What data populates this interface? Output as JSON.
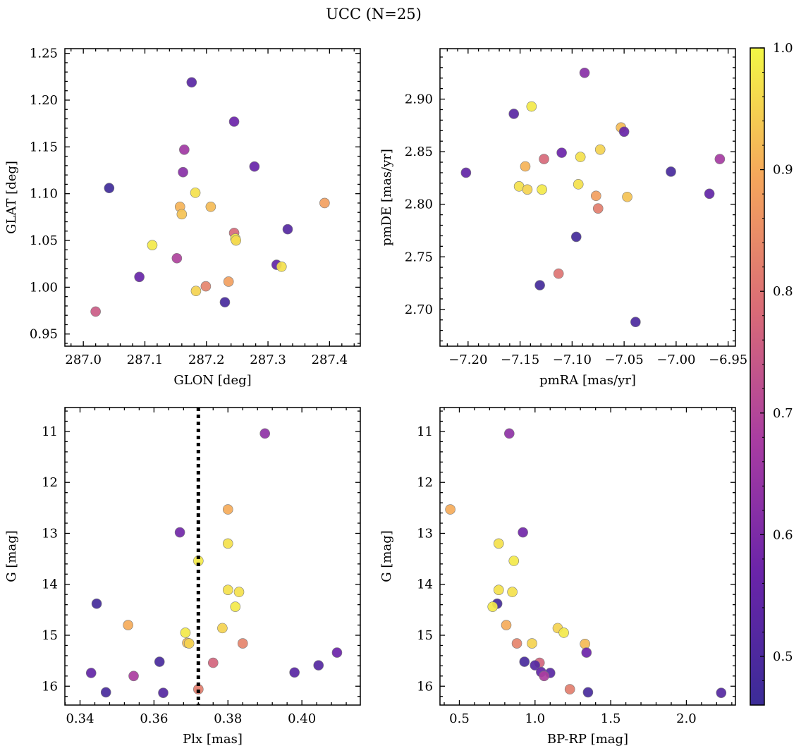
{
  "figure": {
    "title": "UCC (N=25)"
  },
  "colorbar": {
    "colormap": "plasma",
    "range": [
      0.46,
      1.0
    ],
    "ticks": [
      0.5,
      0.6,
      0.7,
      0.8,
      0.9,
      1.0
    ],
    "tick_labels": [
      "0.5",
      "0.6",
      "0.7",
      "0.8",
      "0.9",
      "1.0"
    ]
  },
  "chart_data": [
    {
      "type": "scatter",
      "xlabel": "GLON [deg]",
      "ylabel": "GLAT [deg]",
      "xlim": [
        286.97,
        287.45
      ],
      "ylim": [
        0.937,
        1.255
      ],
      "xticks": [
        287.0,
        287.1,
        287.2,
        287.3,
        287.4
      ],
      "xtick_labels": [
        "287.0",
        "287.1",
        "287.2",
        "287.3",
        "287.4"
      ],
      "yticks": [
        0.95,
        1.0,
        1.05,
        1.1,
        1.15,
        1.2,
        1.25
      ],
      "ytick_labels": [
        "0.95",
        "1.00",
        "1.05",
        "1.10",
        "1.15",
        "1.20",
        "1.25"
      ],
      "inverted_y": false,
      "points": [
        {
          "x": 287.176,
          "y": 1.219,
          "c": 0.53
        },
        {
          "x": 287.245,
          "y": 1.177,
          "c": 0.57
        },
        {
          "x": 287.164,
          "y": 1.147,
          "c": 0.66
        },
        {
          "x": 287.278,
          "y": 1.129,
          "c": 0.56
        },
        {
          "x": 287.162,
          "y": 1.123,
          "c": 0.62
        },
        {
          "x": 287.042,
          "y": 1.106,
          "c": 0.47
        },
        {
          "x": 287.182,
          "y": 1.101,
          "c": 0.97
        },
        {
          "x": 287.392,
          "y": 1.09,
          "c": 0.88
        },
        {
          "x": 287.157,
          "y": 1.086,
          "c": 0.91
        },
        {
          "x": 287.207,
          "y": 1.086,
          "c": 0.92
        },
        {
          "x": 287.16,
          "y": 1.078,
          "c": 0.93
        },
        {
          "x": 287.332,
          "y": 1.062,
          "c": 0.52
        },
        {
          "x": 287.245,
          "y": 1.058,
          "c": 0.78
        },
        {
          "x": 287.247,
          "y": 1.052,
          "c": 0.99
        },
        {
          "x": 287.248,
          "y": 1.05,
          "c": 0.96
        },
        {
          "x": 287.112,
          "y": 1.045,
          "c": 0.98
        },
        {
          "x": 287.152,
          "y": 1.031,
          "c": 0.69
        },
        {
          "x": 287.314,
          "y": 1.024,
          "c": 0.55
        },
        {
          "x": 287.322,
          "y": 1.022,
          "c": 0.97
        },
        {
          "x": 287.091,
          "y": 1.011,
          "c": 0.56
        },
        {
          "x": 287.236,
          "y": 1.006,
          "c": 0.88
        },
        {
          "x": 287.199,
          "y": 1.001,
          "c": 0.83
        },
        {
          "x": 287.183,
          "y": 0.996,
          "c": 0.95
        },
        {
          "x": 287.23,
          "y": 0.984,
          "c": 0.49
        },
        {
          "x": 287.02,
          "y": 0.974,
          "c": 0.75
        }
      ]
    },
    {
      "type": "scatter",
      "xlabel": "pmRA [mas/yr]",
      "ylabel": "pmDE [mas/yr]",
      "xlim": [
        -7.227,
        -6.943
      ],
      "ylim": [
        2.665,
        2.948
      ],
      "xticks": [
        -7.2,
        -7.15,
        -7.1,
        -7.05,
        -7.0,
        -6.95
      ],
      "xtick_labels": [
        "−7.20",
        "−7.15",
        "−7.10",
        "−7.05",
        "−7.00",
        "−6.95"
      ],
      "yticks": [
        2.7,
        2.75,
        2.8,
        2.85,
        2.9
      ],
      "ytick_labels": [
        "2.70",
        "2.75",
        "2.80",
        "2.85",
        "2.90"
      ],
      "inverted_y": false,
      "points": [
        {
          "x": -7.088,
          "y": 2.925,
          "c": 0.62
        },
        {
          "x": -7.139,
          "y": 2.893,
          "c": 0.98
        },
        {
          "x": -7.156,
          "y": 2.886,
          "c": 0.53
        },
        {
          "x": -7.053,
          "y": 2.873,
          "c": 0.92
        },
        {
          "x": -7.05,
          "y": 2.869,
          "c": 0.56
        },
        {
          "x": -7.073,
          "y": 2.852,
          "c": 0.95
        },
        {
          "x": -7.11,
          "y": 2.849,
          "c": 0.57
        },
        {
          "x": -7.092,
          "y": 2.845,
          "c": 0.97
        },
        {
          "x": -6.958,
          "y": 2.843,
          "c": 0.67
        },
        {
          "x": -7.127,
          "y": 2.843,
          "c": 0.78
        },
        {
          "x": -7.145,
          "y": 2.836,
          "c": 0.91
        },
        {
          "x": -7.005,
          "y": 2.831,
          "c": 0.49
        },
        {
          "x": -7.202,
          "y": 2.83,
          "c": 0.55
        },
        {
          "x": -7.094,
          "y": 2.819,
          "c": 0.97
        },
        {
          "x": -7.151,
          "y": 2.817,
          "c": 0.97
        },
        {
          "x": -7.129,
          "y": 2.814,
          "c": 0.98
        },
        {
          "x": -7.143,
          "y": 2.814,
          "c": 0.95
        },
        {
          "x": -6.968,
          "y": 2.81,
          "c": 0.55
        },
        {
          "x": -7.077,
          "y": 2.808,
          "c": 0.88
        },
        {
          "x": -7.047,
          "y": 2.807,
          "c": 0.93
        },
        {
          "x": -7.075,
          "y": 2.796,
          "c": 0.82
        },
        {
          "x": -7.096,
          "y": 2.769,
          "c": 0.48
        },
        {
          "x": -7.113,
          "y": 2.734,
          "c": 0.8
        },
        {
          "x": -7.131,
          "y": 2.723,
          "c": 0.48
        },
        {
          "x": -7.039,
          "y": 2.688,
          "c": 0.5
        }
      ]
    },
    {
      "type": "scatter",
      "xlabel": "Plx [mas]",
      "ylabel": "G [mag]",
      "xlim": [
        0.3359,
        0.4158
      ],
      "ylim": [
        16.37,
        10.53
      ],
      "xticks": [
        0.34,
        0.36,
        0.38,
        0.4
      ],
      "xtick_labels": [
        "0.34",
        "0.36",
        "0.38",
        "0.40"
      ],
      "yticks": [
        11,
        12,
        13,
        14,
        15,
        16
      ],
      "ytick_labels": [
        "11",
        "12",
        "13",
        "14",
        "15",
        "16"
      ],
      "inverted_y": true,
      "vline": {
        "x": 0.372,
        "style": "dotted"
      },
      "points": [
        {
          "x": 0.39,
          "y": 11.04,
          "c": 0.63
        },
        {
          "x": 0.38,
          "y": 12.53,
          "c": 0.9
        },
        {
          "x": 0.367,
          "y": 12.98,
          "c": 0.58
        },
        {
          "x": 0.38,
          "y": 13.2,
          "c": 0.97
        },
        {
          "x": 0.372,
          "y": 13.54,
          "c": 0.98
        },
        {
          "x": 0.38,
          "y": 14.11,
          "c": 0.97
        },
        {
          "x": 0.383,
          "y": 14.15,
          "c": 0.97
        },
        {
          "x": 0.3445,
          "y": 14.38,
          "c": 0.48
        },
        {
          "x": 0.382,
          "y": 14.44,
          "c": 0.98
        },
        {
          "x": 0.353,
          "y": 14.8,
          "c": 0.9
        },
        {
          "x": 0.3785,
          "y": 14.86,
          "c": 0.95
        },
        {
          "x": 0.3685,
          "y": 14.95,
          "c": 0.98
        },
        {
          "x": 0.369,
          "y": 15.15,
          "c": 0.92
        },
        {
          "x": 0.3695,
          "y": 15.16,
          "c": 0.95
        },
        {
          "x": 0.384,
          "y": 15.16,
          "c": 0.83
        },
        {
          "x": 0.4095,
          "y": 15.34,
          "c": 0.57
        },
        {
          "x": 0.3615,
          "y": 15.52,
          "c": 0.49
        },
        {
          "x": 0.376,
          "y": 15.54,
          "c": 0.77
        },
        {
          "x": 0.4045,
          "y": 15.59,
          "c": 0.52
        },
        {
          "x": 0.343,
          "y": 15.74,
          "c": 0.55
        },
        {
          "x": 0.398,
          "y": 15.73,
          "c": 0.53
        },
        {
          "x": 0.3545,
          "y": 15.8,
          "c": 0.68
        },
        {
          "x": 0.372,
          "y": 16.06,
          "c": 0.82
        },
        {
          "x": 0.347,
          "y": 16.12,
          "c": 0.49
        },
        {
          "x": 0.3625,
          "y": 16.13,
          "c": 0.52
        }
      ]
    },
    {
      "type": "scatter",
      "xlabel": "BP-RP [mag]",
      "ylabel": "G [mag]",
      "xlim": [
        0.372,
        2.324
      ],
      "ylim": [
        16.37,
        10.53
      ],
      "xticks": [
        0.5,
        1.0,
        1.5,
        2.0
      ],
      "xtick_labels": [
        "0.5",
        "1.0",
        "1.5",
        "2.0"
      ],
      "yticks": [
        11,
        12,
        13,
        14,
        15,
        16
      ],
      "ytick_labels": [
        "11",
        "12",
        "13",
        "14",
        "15",
        "16"
      ],
      "inverted_y": true,
      "points": [
        {
          "x": 0.83,
          "y": 11.04,
          "c": 0.63
        },
        {
          "x": 0.44,
          "y": 12.53,
          "c": 0.9
        },
        {
          "x": 0.92,
          "y": 12.98,
          "c": 0.58
        },
        {
          "x": 0.76,
          "y": 13.2,
          "c": 0.97
        },
        {
          "x": 0.86,
          "y": 13.54,
          "c": 0.98
        },
        {
          "x": 0.76,
          "y": 14.11,
          "c": 0.97
        },
        {
          "x": 0.85,
          "y": 14.15,
          "c": 0.97
        },
        {
          "x": 0.75,
          "y": 14.38,
          "c": 0.48
        },
        {
          "x": 0.72,
          "y": 14.44,
          "c": 0.98
        },
        {
          "x": 0.81,
          "y": 14.8,
          "c": 0.9
        },
        {
          "x": 1.15,
          "y": 14.86,
          "c": 0.95
        },
        {
          "x": 1.19,
          "y": 14.95,
          "c": 0.98
        },
        {
          "x": 0.88,
          "y": 15.16,
          "c": 0.83
        },
        {
          "x": 0.98,
          "y": 15.16,
          "c": 0.95
        },
        {
          "x": 1.33,
          "y": 15.17,
          "c": 0.92
        },
        {
          "x": 1.34,
          "y": 15.34,
          "c": 0.57
        },
        {
          "x": 0.93,
          "y": 15.52,
          "c": 0.49
        },
        {
          "x": 1.03,
          "y": 15.54,
          "c": 0.77
        },
        {
          "x": 1.0,
          "y": 15.59,
          "c": 0.52
        },
        {
          "x": 1.04,
          "y": 15.72,
          "c": 0.55
        },
        {
          "x": 1.1,
          "y": 15.74,
          "c": 0.53
        },
        {
          "x": 1.06,
          "y": 15.8,
          "c": 0.68
        },
        {
          "x": 1.23,
          "y": 16.06,
          "c": 0.82
        },
        {
          "x": 1.35,
          "y": 16.12,
          "c": 0.49
        },
        {
          "x": 2.23,
          "y": 16.13,
          "c": 0.52
        }
      ]
    }
  ]
}
